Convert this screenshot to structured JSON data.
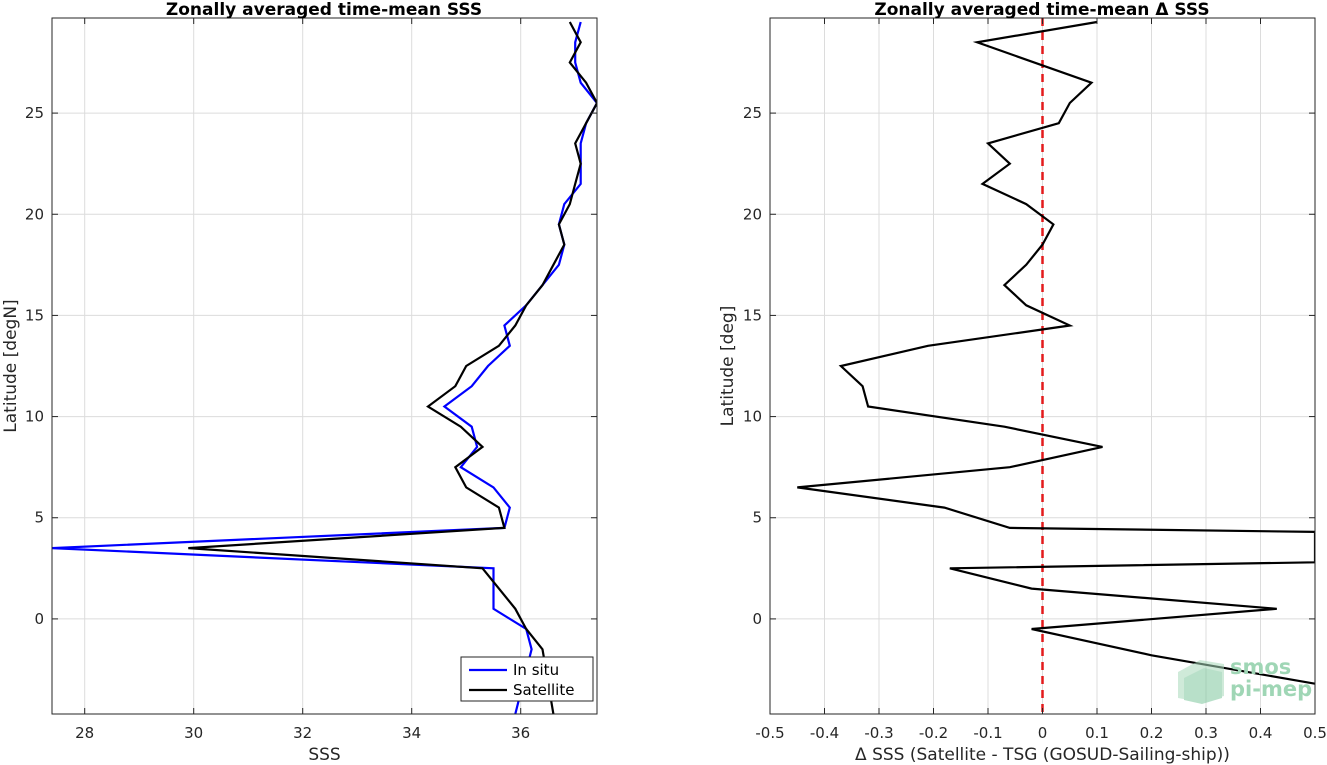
{
  "chart_data": [
    {
      "type": "line",
      "title": "Zonally averaged time-mean SSS",
      "xlabel": "SSS",
      "ylabel": "Latitude [degN]",
      "xlim": [
        27.4,
        37.4
      ],
      "ylim": [
        -4.7,
        29.7
      ],
      "xticks": [
        28,
        30,
        32,
        34,
        36
      ],
      "yticks": [
        0,
        5,
        10,
        15,
        20,
        25
      ],
      "grid": true,
      "legend_position": "bottom-right",
      "series": [
        {
          "name": "In situ",
          "color": "#0000ff",
          "points": [
            {
              "x": 35.9,
              "y": -4.7
            },
            {
              "x": 36.2,
              "y": -1.5
            },
            {
              "x": 36.1,
              "y": -0.5
            },
            {
              "x": 35.5,
              "y": 0.5
            },
            {
              "x": 35.5,
              "y": 2.5
            },
            {
              "x": 27.4,
              "y": 3.5
            },
            {
              "x": 35.7,
              "y": 4.5
            },
            {
              "x": 35.8,
              "y": 5.5
            },
            {
              "x": 35.5,
              "y": 6.5
            },
            {
              "x": 34.9,
              "y": 7.5
            },
            {
              "x": 35.2,
              "y": 8.5
            },
            {
              "x": 35.1,
              "y": 9.5
            },
            {
              "x": 34.6,
              "y": 10.5
            },
            {
              "x": 35.1,
              "y": 11.5
            },
            {
              "x": 35.4,
              "y": 12.5
            },
            {
              "x": 35.8,
              "y": 13.5
            },
            {
              "x": 35.7,
              "y": 14.5
            },
            {
              "x": 36.1,
              "y": 15.5
            },
            {
              "x": 36.4,
              "y": 16.5
            },
            {
              "x": 36.7,
              "y": 17.5
            },
            {
              "x": 36.8,
              "y": 18.5
            },
            {
              "x": 36.7,
              "y": 19.5
            },
            {
              "x": 36.8,
              "y": 20.5
            },
            {
              "x": 37.1,
              "y": 21.5
            },
            {
              "x": 37.1,
              "y": 22.5
            },
            {
              "x": 37.1,
              "y": 23.5
            },
            {
              "x": 37.2,
              "y": 24.5
            },
            {
              "x": 37.4,
              "y": 25.5
            },
            {
              "x": 37.1,
              "y": 26.5
            },
            {
              "x": 37.0,
              "y": 27.5
            },
            {
              "x": 37.0,
              "y": 28.5
            },
            {
              "x": 37.1,
              "y": 29.5
            }
          ]
        },
        {
          "name": "Satellite",
          "color": "#000000",
          "points": [
            {
              "x": 36.6,
              "y": -4.7
            },
            {
              "x": 36.4,
              "y": -1.5
            },
            {
              "x": 36.1,
              "y": -0.5
            },
            {
              "x": 35.9,
              "y": 0.5
            },
            {
              "x": 35.3,
              "y": 2.5
            },
            {
              "x": 29.9,
              "y": 3.5
            },
            {
              "x": 35.7,
              "y": 4.5
            },
            {
              "x": 35.6,
              "y": 5.5
            },
            {
              "x": 35.0,
              "y": 6.5
            },
            {
              "x": 34.8,
              "y": 7.5
            },
            {
              "x": 35.3,
              "y": 8.5
            },
            {
              "x": 34.9,
              "y": 9.5
            },
            {
              "x": 34.3,
              "y": 10.5
            },
            {
              "x": 34.8,
              "y": 11.5
            },
            {
              "x": 35.0,
              "y": 12.5
            },
            {
              "x": 35.6,
              "y": 13.5
            },
            {
              "x": 35.9,
              "y": 14.5
            },
            {
              "x": 36.1,
              "y": 15.5
            },
            {
              "x": 36.4,
              "y": 16.5
            },
            {
              "x": 36.6,
              "y": 17.5
            },
            {
              "x": 36.8,
              "y": 18.5
            },
            {
              "x": 36.7,
              "y": 19.5
            },
            {
              "x": 36.9,
              "y": 20.5
            },
            {
              "x": 37.0,
              "y": 21.5
            },
            {
              "x": 37.1,
              "y": 22.5
            },
            {
              "x": 37.0,
              "y": 23.5
            },
            {
              "x": 37.2,
              "y": 24.5
            },
            {
              "x": 37.4,
              "y": 25.5
            },
            {
              "x": 37.2,
              "y": 26.5
            },
            {
              "x": 36.9,
              "y": 27.5
            },
            {
              "x": 37.1,
              "y": 28.5
            },
            {
              "x": 36.9,
              "y": 29.5
            }
          ]
        }
      ]
    },
    {
      "type": "line",
      "title": "Zonally averaged time-mean Δ SSS",
      "xlabel": "Δ SSS (Satellite - TSG (GOSUD-Sailing-ship))",
      "ylabel": "Latitude [deg]",
      "xlim": [
        -0.5,
        0.5
      ],
      "ylim": [
        -4.7,
        29.7
      ],
      "xticks": [
        -0.5,
        -0.4,
        -0.3,
        -0.2,
        -0.1,
        0,
        0.1,
        0.2,
        0.3,
        0.4,
        0.5
      ],
      "yticks": [
        0,
        5,
        10,
        15,
        20,
        25
      ],
      "grid": true,
      "reference_line": {
        "x": 0,
        "color": "#e31a1c",
        "style": "dashed"
      },
      "series": [
        {
          "color": "#000000",
          "points": [
            {
              "x": 0.5,
              "y": -3.2
            },
            {
              "x": 0.2,
              "y": -1.8
            },
            {
              "x": -0.02,
              "y": -0.5
            },
            {
              "x": 0.43,
              "y": 0.5
            },
            {
              "x": -0.02,
              "y": 1.5
            },
            {
              "x": -0.17,
              "y": 2.5
            },
            {
              "x": 0.5,
              "y": 2.8
            },
            {
              "x": 0.5,
              "y": 4.3
            },
            {
              "x": -0.06,
              "y": 4.5
            },
            {
              "x": -0.18,
              "y": 5.5
            },
            {
              "x": -0.45,
              "y": 6.5
            },
            {
              "x": -0.06,
              "y": 7.5
            },
            {
              "x": 0.11,
              "y": 8.5
            },
            {
              "x": -0.07,
              "y": 9.5
            },
            {
              "x": -0.32,
              "y": 10.5
            },
            {
              "x": -0.33,
              "y": 11.5
            },
            {
              "x": -0.37,
              "y": 12.5
            },
            {
              "x": -0.21,
              "y": 13.5
            },
            {
              "x": 0.05,
              "y": 14.5
            },
            {
              "x": -0.03,
              "y": 15.5
            },
            {
              "x": -0.07,
              "y": 16.5
            },
            {
              "x": -0.03,
              "y": 17.5
            },
            {
              "x": 0.0,
              "y": 18.5
            },
            {
              "x": 0.02,
              "y": 19.5
            },
            {
              "x": -0.03,
              "y": 20.5
            },
            {
              "x": -0.11,
              "y": 21.5
            },
            {
              "x": -0.06,
              "y": 22.5
            },
            {
              "x": -0.1,
              "y": 23.5
            },
            {
              "x": 0.03,
              "y": 24.5
            },
            {
              "x": 0.05,
              "y": 25.5
            },
            {
              "x": 0.09,
              "y": 26.5
            },
            {
              "x": -0.12,
              "y": 28.5
            },
            {
              "x": 0.1,
              "y": 29.5
            }
          ]
        }
      ]
    }
  ],
  "watermark": {
    "line1": "smos",
    "line2": "pi-mep"
  }
}
